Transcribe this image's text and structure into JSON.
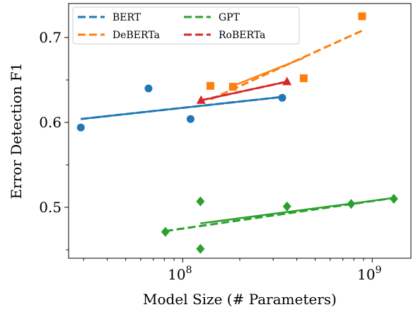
{
  "chart_data": {
    "type": "scatter",
    "title": "",
    "xlabel": "Model Size (# Parameters)",
    "ylabel": "Error Detection F1",
    "x_scale": "log",
    "xlim": [
      25000000,
      1600000000
    ],
    "ylim": [
      0.44,
      0.74
    ],
    "grid": false,
    "legend_position": "top-left",
    "x_major_ticks": [
      {
        "value": 100000000,
        "base": "10",
        "exp": "8"
      },
      {
        "value": 1000000000,
        "base": "10",
        "exp": "9"
      }
    ],
    "y_ticks": [
      {
        "value": 0.5,
        "label": "0.5"
      },
      {
        "value": 0.6,
        "label": "0.6"
      },
      {
        "value": 0.7,
        "label": "0.7"
      }
    ],
    "series": [
      {
        "name": "BERT",
        "color": "#1f77b4",
        "marker": "circle",
        "points": [
          [
            29000000,
            0.594
          ],
          [
            66000000,
            0.64
          ],
          [
            110000000,
            0.604
          ],
          [
            335000000,
            0.629
          ]
        ],
        "trend": {
          "solid": [
            [
              29000000,
              0.604
            ],
            [
              335000000,
              0.63
            ]
          ],
          "dashed": [
            [
              29000000,
              0.604
            ],
            [
              335000000,
              0.63
            ]
          ]
        }
      },
      {
        "name": "DeBERTa",
        "color": "#ff7f0e",
        "marker": "square",
        "points": [
          [
            140000000,
            0.643
          ],
          [
            184000000,
            0.642
          ],
          [
            435000000,
            0.652
          ],
          [
            884000000,
            0.725
          ]
        ],
        "trend": {
          "solid": [
            [
              184000000,
              0.643
            ],
            [
              435000000,
              0.676
            ]
          ],
          "dashed": [
            [
              140000000,
              0.627
            ],
            [
              884000000,
              0.708
            ]
          ]
        }
      },
      {
        "name": "GPT",
        "color": "#2ca02c",
        "marker": "diamond",
        "points": [
          [
            81000000,
            0.471
          ],
          [
            124000000,
            0.507
          ],
          [
            124000000,
            0.451
          ],
          [
            355000000,
            0.501
          ],
          [
            774000000,
            0.504
          ],
          [
            1300000000,
            0.51
          ]
        ],
        "trend": {
          "solid": [
            [
              124000000,
              0.481
            ],
            [
              1300000000,
              0.511
            ]
          ],
          "dashed": [
            [
              81000000,
              0.472
            ],
            [
              1300000000,
              0.511
            ]
          ]
        }
      },
      {
        "name": "RoBERTa",
        "color": "#d62728",
        "marker": "triangle",
        "points": [
          [
            125000000,
            0.626
          ],
          [
            355000000,
            0.648
          ]
        ],
        "trend": {
          "solid": [
            [
              125000000,
              0.626
            ],
            [
              355000000,
              0.648
            ]
          ],
          "dashed": [
            [
              125000000,
              0.626
            ],
            [
              355000000,
              0.648
            ]
          ]
        }
      }
    ]
  }
}
